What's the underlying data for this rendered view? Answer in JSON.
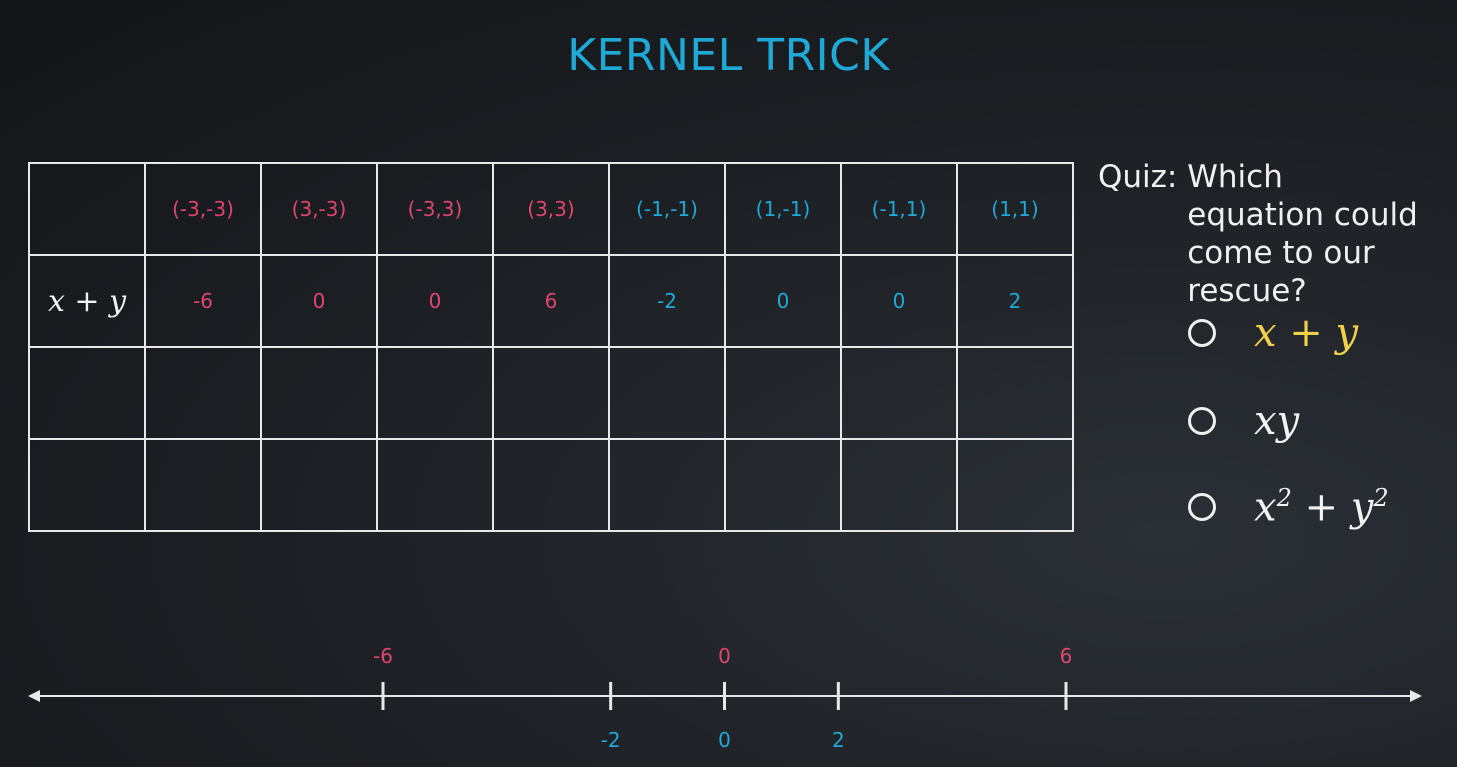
{
  "title": "KERNEL TRICK",
  "table": {
    "headers": [
      {
        "label": "(-3,-3)",
        "color": "red"
      },
      {
        "label": "(3,-3)",
        "color": "red"
      },
      {
        "label": "(-3,3)",
        "color": "red"
      },
      {
        "label": "(3,3)",
        "color": "red"
      },
      {
        "label": "(-1,-1)",
        "color": "blue"
      },
      {
        "label": "(1,-1)",
        "color": "blue"
      },
      {
        "label": "(-1,1)",
        "color": "blue"
      },
      {
        "label": "(1,1)",
        "color": "blue"
      }
    ],
    "row1_label": {
      "x": "x",
      "plus": "+",
      "y": "y"
    },
    "row1_values": [
      "-6",
      "0",
      "0",
      "6",
      "-2",
      "0",
      "0",
      "2"
    ]
  },
  "quiz": {
    "prefix": "Quiz:",
    "question": "Which equation could come to our rescue?",
    "options": [
      {
        "a": "x",
        "op": "+",
        "b": "y",
        "selected_color": "#f2d14a"
      },
      {
        "a": "x",
        "b": "y"
      },
      {
        "a": "x",
        "exp_a": "2",
        "op": "+",
        "b": "y",
        "exp_b": "2"
      }
    ]
  },
  "number_line": {
    "top_labels": [
      {
        "value": -6,
        "text": "-6"
      },
      {
        "value": 0,
        "text": "0"
      },
      {
        "value": 6,
        "text": "6"
      }
    ],
    "bottom_labels": [
      {
        "value": -2,
        "text": "-2"
      },
      {
        "value": 0,
        "text": "0"
      },
      {
        "value": 2,
        "text": "2"
      }
    ],
    "range": [
      -6,
      6
    ]
  },
  "colors": {
    "red": "#e0456f",
    "blue": "#1fa9d6",
    "yellow": "#f2d14a",
    "line": "#e8e8e8"
  }
}
